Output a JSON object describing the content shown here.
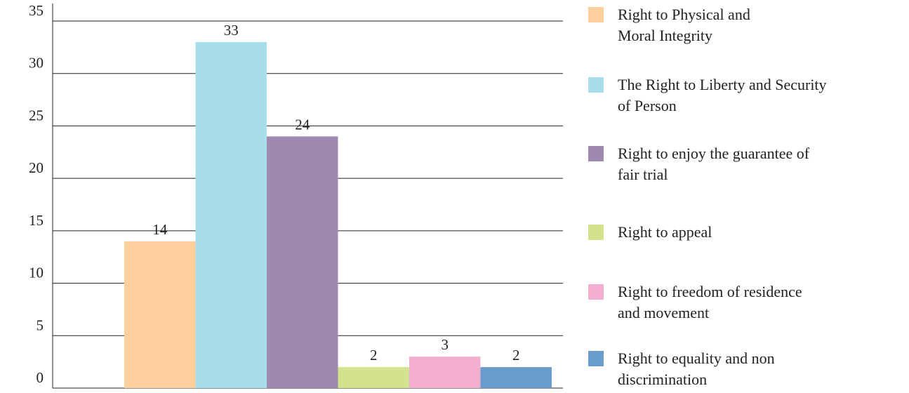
{
  "chart_data": {
    "type": "bar",
    "categories": [
      "Right to Physical and\nMoral Integrity",
      "The Right to Liberty and Security\nof Person",
      "Right to enjoy the guarantee of\nfair trial",
      "Right to appeal",
      "Right to freedom of residence\nand movement",
      "Right to equality and non\ndiscrimination"
    ],
    "values": [
      14,
      33,
      24,
      2,
      3,
      2
    ],
    "colors": [
      "#fccf9c",
      "#a8dde9",
      "#9f89b1",
      "#d3e28e",
      "#f3aecd",
      "#6a9ccb"
    ],
    "ylim": [
      0,
      35
    ],
    "yticks": [
      0,
      5,
      10,
      15,
      20,
      25,
      30,
      35
    ],
    "grid": true,
    "legend": "right"
  }
}
